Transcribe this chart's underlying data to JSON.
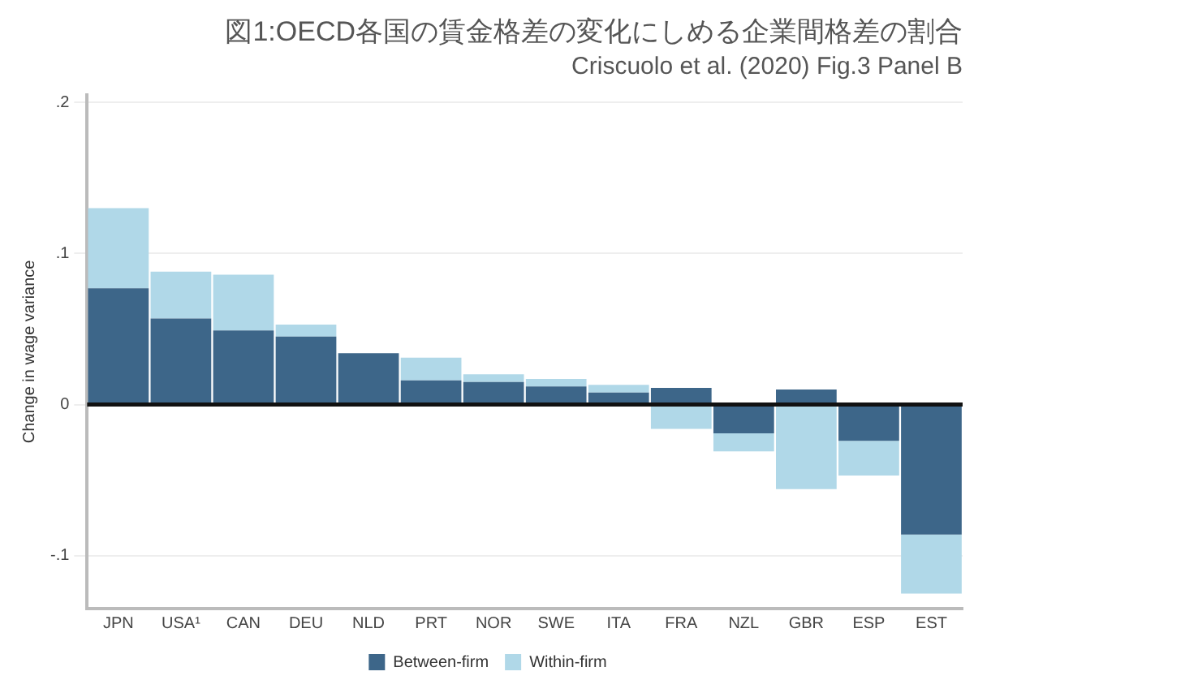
{
  "chart_data": {
    "type": "bar",
    "stacked": true,
    "title": "図1:OECD各国の賃金格差の変化にしめる企業間格差の割合",
    "subtitle": "Criscuolo et al. (2020) Fig.3 Panel B",
    "ylabel": "Change in wage variance",
    "categories": [
      "JPN",
      "USA¹",
      "CAN",
      "DEU",
      "NLD",
      "PRT",
      "NOR",
      "SWE",
      "ITA",
      "FRA",
      "NZL",
      "GBR",
      "ESP",
      "EST"
    ],
    "series": [
      {
        "name": "Between-firm",
        "color": "#3d6689",
        "values": [
          0.077,
          0.057,
          0.049,
          0.045,
          0.034,
          0.016,
          0.015,
          0.012,
          0.008,
          0.011,
          -0.019,
          0.01,
          -0.024,
          -0.086
        ]
      },
      {
        "name": "Within-firm",
        "color": "#b0d8e8",
        "values": [
          0.053,
          0.031,
          0.037,
          0.008,
          0,
          0.015,
          0.005,
          0.005,
          0.005,
          -0.016,
          -0.012,
          -0.056,
          -0.023,
          -0.039
        ]
      }
    ],
    "ylim": [
      -0.135,
      0.205
    ],
    "yticks": [
      {
        "value": 0.2,
        "label": ".2"
      },
      {
        "value": 0.1,
        "label": ".1"
      },
      0,
      {
        "value": -0.1,
        "label": "-.1"
      }
    ],
    "ref_lines": [
      {
        "axis": "y",
        "value": 0,
        "color": "#111111"
      }
    ],
    "grid": "y",
    "legend": "bottom"
  }
}
